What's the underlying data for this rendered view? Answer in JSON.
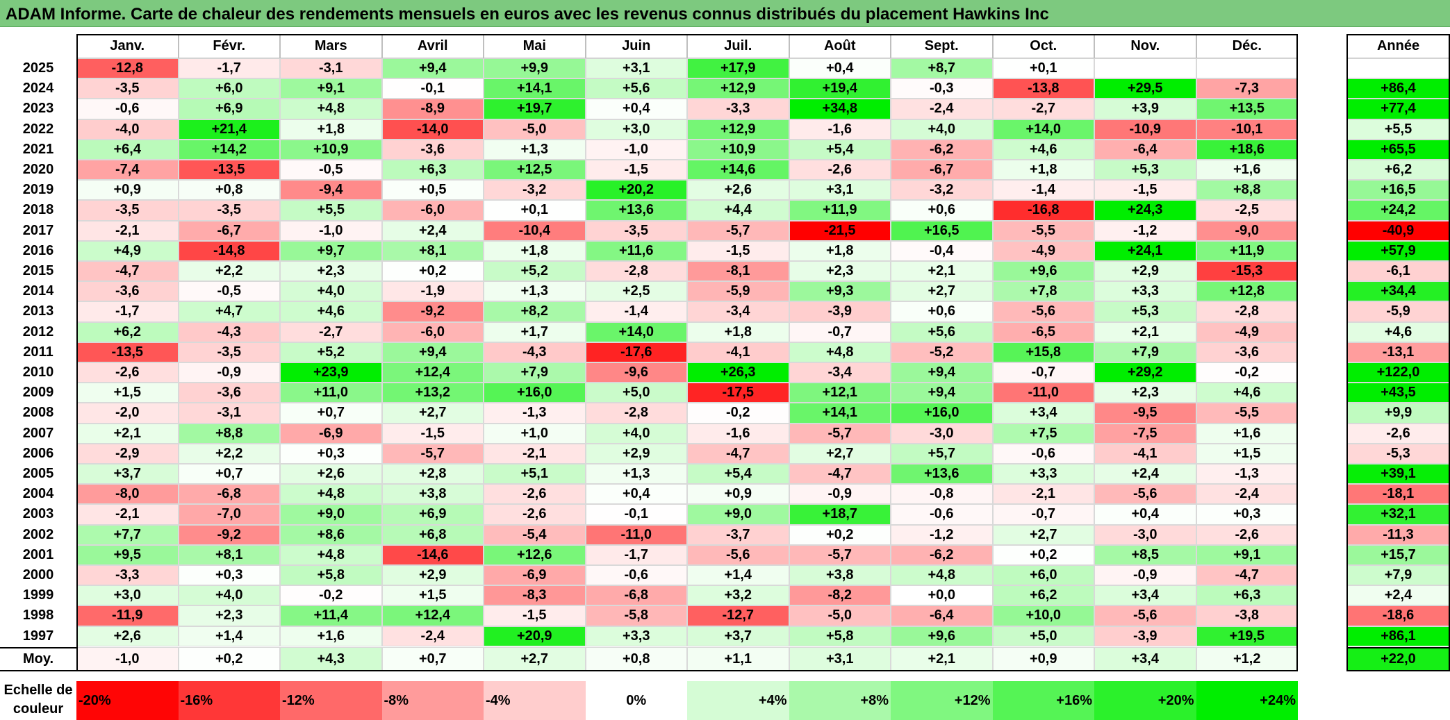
{
  "title": "ADAM Informe. Carte de chaleur des rendements mensuels en euros avec les revenus connus distribués du placement Hawkins Inc",
  "chart_data": {
    "type": "heatmap",
    "months": [
      "Janv.",
      "Févr.",
      "Mars",
      "Avril",
      "Mai",
      "Juin",
      "Juil.",
      "Août",
      "Sept.",
      "Oct.",
      "Nov.",
      "Déc."
    ],
    "year_header": "Année",
    "rows": [
      {
        "year": "2025",
        "values": [
          "-12,8",
          "-1,7",
          "-3,1",
          "+9,4",
          "+9,9",
          "+3,1",
          "+17,9",
          "+0,4",
          "+8,7",
          "+0,1",
          "",
          ""
        ],
        "annual": ""
      },
      {
        "year": "2024",
        "values": [
          "-3,5",
          "+6,0",
          "+9,1",
          "-0,1",
          "+14,1",
          "+5,6",
          "+12,9",
          "+19,4",
          "-0,3",
          "-13,8",
          "+29,5",
          "-7,3"
        ],
        "annual": "+86,4"
      },
      {
        "year": "2023",
        "values": [
          "-0,6",
          "+6,9",
          "+4,8",
          "-8,9",
          "+19,7",
          "+0,4",
          "-3,3",
          "+34,8",
          "-2,4",
          "-2,7",
          "+3,9",
          "+13,5"
        ],
        "annual": "+77,4"
      },
      {
        "year": "2022",
        "values": [
          "-4,0",
          "+21,4",
          "+1,8",
          "-14,0",
          "-5,0",
          "+3,0",
          "+12,9",
          "-1,6",
          "+4,0",
          "+14,0",
          "-10,9",
          "-10,1"
        ],
        "annual": "+5,5"
      },
      {
        "year": "2021",
        "values": [
          "+6,4",
          "+14,2",
          "+10,9",
          "-3,6",
          "+1,3",
          "-1,0",
          "+10,9",
          "+5,4",
          "-6,2",
          "+4,6",
          "-6,4",
          "+18,6"
        ],
        "annual": "+65,5"
      },
      {
        "year": "2020",
        "values": [
          "-7,4",
          "-13,5",
          "-0,5",
          "+6,3",
          "+12,5",
          "-1,5",
          "+14,6",
          "-2,6",
          "-6,7",
          "+1,8",
          "+5,3",
          "+1,6"
        ],
        "annual": "+6,2"
      },
      {
        "year": "2019",
        "values": [
          "+0,9",
          "+0,8",
          "-9,4",
          "+0,5",
          "-3,2",
          "+20,2",
          "+2,6",
          "+3,1",
          "-3,2",
          "-1,4",
          "-1,5",
          "+8,8"
        ],
        "annual": "+16,5"
      },
      {
        "year": "2018",
        "values": [
          "-3,5",
          "-3,5",
          "+5,5",
          "-6,0",
          "+0,1",
          "+13,6",
          "+4,4",
          "+11,9",
          "+0,6",
          "-16,8",
          "+24,3",
          "-2,5"
        ],
        "annual": "+24,2"
      },
      {
        "year": "2017",
        "values": [
          "-2,1",
          "-6,7",
          "-1,0",
          "+2,4",
          "-10,4",
          "-3,5",
          "-5,7",
          "-21,5",
          "+16,5",
          "-5,5",
          "-1,2",
          "-9,0"
        ],
        "annual": "-40,9"
      },
      {
        "year": "2016",
        "values": [
          "+4,9",
          "-14,8",
          "+9,7",
          "+8,1",
          "+1,8",
          "+11,6",
          "-1,5",
          "+1,8",
          "-0,4",
          "-4,9",
          "+24,1",
          "+11,9"
        ],
        "annual": "+57,9"
      },
      {
        "year": "2015",
        "values": [
          "-4,7",
          "+2,2",
          "+2,3",
          "+0,2",
          "+5,2",
          "-2,8",
          "-8,1",
          "+2,3",
          "+2,1",
          "+9,6",
          "+2,9",
          "-15,3"
        ],
        "annual": "-6,1"
      },
      {
        "year": "2014",
        "values": [
          "-3,6",
          "-0,5",
          "+4,0",
          "-1,9",
          "+1,3",
          "+2,5",
          "-5,9",
          "+9,3",
          "+2,7",
          "+7,8",
          "+3,3",
          "+12,8"
        ],
        "annual": "+34,4"
      },
      {
        "year": "2013",
        "values": [
          "-1,7",
          "+4,7",
          "+4,6",
          "-9,2",
          "+8,2",
          "-1,4",
          "-3,4",
          "-3,9",
          "+0,6",
          "-5,6",
          "+5,3",
          "-2,8"
        ],
        "annual": "-5,9"
      },
      {
        "year": "2012",
        "values": [
          "+6,2",
          "-4,3",
          "-2,7",
          "-6,0",
          "+1,7",
          "+14,0",
          "+1,8",
          "-0,7",
          "+5,6",
          "-6,5",
          "+2,1",
          "-4,9"
        ],
        "annual": "+4,6"
      },
      {
        "year": "2011",
        "values": [
          "-13,5",
          "-3,5",
          "+5,2",
          "+9,4",
          "-4,3",
          "-17,6",
          "-4,1",
          "+4,8",
          "-5,2",
          "+15,8",
          "+7,9",
          "-3,6"
        ],
        "annual": "-13,1"
      },
      {
        "year": "2010",
        "values": [
          "-2,6",
          "-0,9",
          "+23,9",
          "+12,4",
          "+7,9",
          "-9,6",
          "+26,3",
          "-3,4",
          "+9,4",
          "-0,7",
          "+29,2",
          "-0,2"
        ],
        "annual": "+122,0"
      },
      {
        "year": "2009",
        "values": [
          "+1,5",
          "-3,6",
          "+11,0",
          "+13,2",
          "+16,0",
          "+5,0",
          "-17,5",
          "+12,1",
          "+9,4",
          "-11,0",
          "+2,3",
          "+4,6"
        ],
        "annual": "+43,5"
      },
      {
        "year": "2008",
        "values": [
          "-2,0",
          "-3,1",
          "+0,7",
          "+2,7",
          "-1,3",
          "-2,8",
          "-0,2",
          "+14,1",
          "+16,0",
          "+3,4",
          "-9,5",
          "-5,5"
        ],
        "annual": "+9,9"
      },
      {
        "year": "2007",
        "values": [
          "+2,1",
          "+8,8",
          "-6,9",
          "-1,5",
          "+1,0",
          "+4,0",
          "-1,6",
          "-5,7",
          "-3,0",
          "+7,5",
          "-7,5",
          "+1,6"
        ],
        "annual": "-2,6"
      },
      {
        "year": "2006",
        "values": [
          "-2,9",
          "+2,2",
          "+0,3",
          "-5,7",
          "-2,1",
          "+2,9",
          "-4,7",
          "+2,7",
          "+5,7",
          "-0,6",
          "-4,1",
          "+1,5"
        ],
        "annual": "-5,3"
      },
      {
        "year": "2005",
        "values": [
          "+3,7",
          "+0,7",
          "+2,6",
          "+2,8",
          "+5,1",
          "+1,3",
          "+5,4",
          "-4,7",
          "+13,6",
          "+3,3",
          "+2,4",
          "-1,3"
        ],
        "annual": "+39,1"
      },
      {
        "year": "2004",
        "values": [
          "-8,0",
          "-6,8",
          "+4,8",
          "+3,8",
          "-2,6",
          "+0,4",
          "+0,9",
          "-0,9",
          "-0,8",
          "-2,1",
          "-5,6",
          "-2,4"
        ],
        "annual": "-18,1"
      },
      {
        "year": "2003",
        "values": [
          "-2,1",
          "-7,0",
          "+9,0",
          "+6,9",
          "-2,6",
          "-0,1",
          "+9,0",
          "+18,7",
          "-0,6",
          "-0,7",
          "+0,4",
          "+0,3"
        ],
        "annual": "+32,1"
      },
      {
        "year": "2002",
        "values": [
          "+7,7",
          "-9,2",
          "+8,6",
          "+6,8",
          "-5,4",
          "-11,0",
          "-3,7",
          "+0,2",
          "-1,2",
          "+2,7",
          "-3,0",
          "-2,6"
        ],
        "annual": "-11,3"
      },
      {
        "year": "2001",
        "values": [
          "+9,5",
          "+8,1",
          "+4,8",
          "-14,6",
          "+12,6",
          "-1,7",
          "-5,6",
          "-5,7",
          "-6,2",
          "+0,2",
          "+8,5",
          "+9,1"
        ],
        "annual": "+15,7"
      },
      {
        "year": "2000",
        "values": [
          "-3,3",
          "+0,3",
          "+5,8",
          "+2,9",
          "-6,9",
          "-0,6",
          "+1,4",
          "+3,8",
          "+4,8",
          "+6,0",
          "-0,9",
          "-4,7"
        ],
        "annual": "+7,9"
      },
      {
        "year": "1999",
        "values": [
          "+3,0",
          "+4,0",
          "-0,2",
          "+1,5",
          "-8,3",
          "-6,8",
          "+3,2",
          "-8,2",
          "+0,0",
          "+6,2",
          "+3,4",
          "+6,3"
        ],
        "annual": "+2,4"
      },
      {
        "year": "1998",
        "values": [
          "-11,9",
          "+2,3",
          "+11,4",
          "+12,4",
          "-1,5",
          "-5,8",
          "-12,7",
          "-5,0",
          "-6,4",
          "+10,0",
          "-5,6",
          "-3,8"
        ],
        "annual": "-18,6"
      },
      {
        "year": "1997",
        "values": [
          "+2,6",
          "+1,4",
          "+1,6",
          "-2,4",
          "+20,9",
          "+3,3",
          "+3,7",
          "+5,8",
          "+9,6",
          "+5,0",
          "-3,9",
          "+19,5"
        ],
        "annual": "+86,1"
      }
    ],
    "average": {
      "label": "Moy.",
      "values": [
        "-1,0",
        "+0,2",
        "+4,3",
        "+0,7",
        "+2,7",
        "+0,8",
        "+1,1",
        "+3,1",
        "+2,1",
        "+0,9",
        "+3,4",
        "+1,2"
      ],
      "annual": "+22,0"
    },
    "color_scale": {
      "label": "Echelle de couleur",
      "steps": [
        {
          "label": "-20%",
          "value": -20
        },
        {
          "label": "-16%",
          "value": -16
        },
        {
          "label": "-12%",
          "value": -12
        },
        {
          "label": "-8%",
          "value": -8
        },
        {
          "label": "-4%",
          "value": -4
        },
        {
          "label": "0%",
          "value": 0
        },
        {
          "label": "+4%",
          "value": 4
        },
        {
          "label": "+8%",
          "value": 8
        },
        {
          "label": "+12%",
          "value": 12
        },
        {
          "label": "+16%",
          "value": 16
        },
        {
          "label": "+20%",
          "value": 20
        },
        {
          "label": "+24%",
          "value": 24
        }
      ],
      "negative_color": "#ff0000",
      "positive_color": "#00ee00",
      "neutral_color": "#ffffff"
    }
  }
}
